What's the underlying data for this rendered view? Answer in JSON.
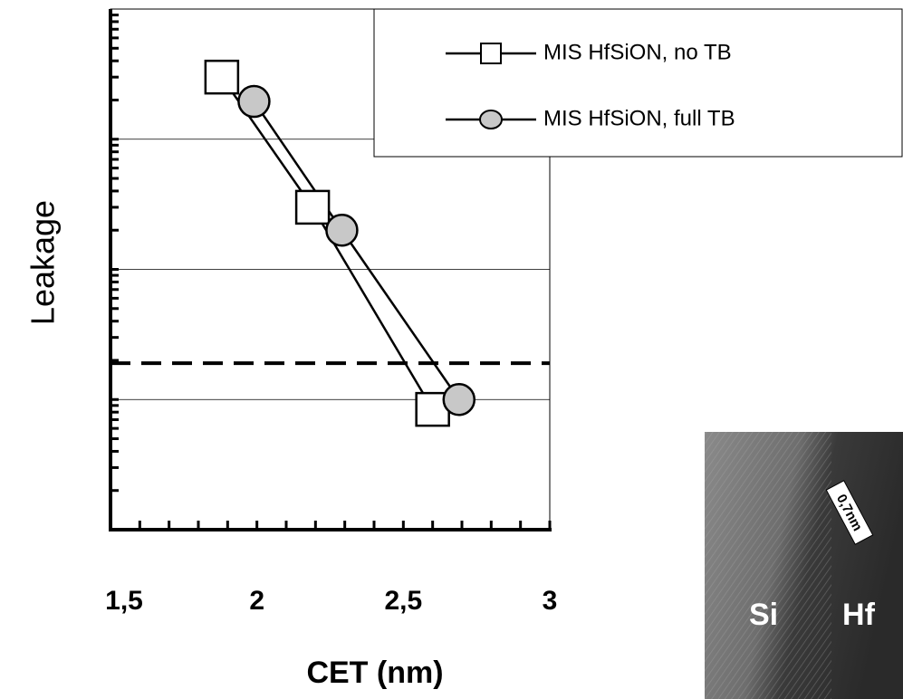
{
  "chart_data": {
    "type": "line",
    "x_label": "CET (nm)",
    "y_label": "Leakage",
    "xlim": [
      1.5,
      3
    ],
    "xticks": [
      {
        "value": 1.5,
        "label": "1,5"
      },
      2,
      {
        "value": 2.5,
        "label": "2,5"
      },
      3
    ],
    "ylim": [
      1,
      10000
    ],
    "yticks": [
      10,
      100,
      1000
    ],
    "log_y": true,
    "grid": true,
    "threshold": 19,
    "legend": "upper right",
    "series": [
      {
        "name": "MIS HfSiON, no TB",
        "marker": "square",
        "color": "#ffffff",
        "x": [
          1.88,
          2.19,
          2.6
        ],
        "values": [
          3000,
          300,
          8.4
        ]
      },
      {
        "name": "MIS HfSiON, full TB",
        "marker": "circle",
        "color": "#c8c8c8",
        "x": [
          1.99,
          2.29,
          2.69
        ],
        "values": [
          1950,
          200,
          10
        ]
      }
    ]
  },
  "inset": {
    "labels": [
      "Si",
      "Hf",
      "0,7nm"
    ]
  }
}
